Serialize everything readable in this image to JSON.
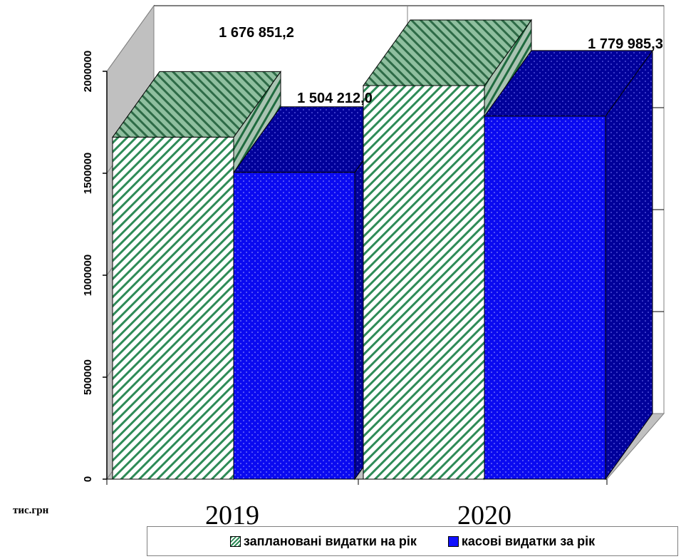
{
  "chart_data": {
    "type": "bar",
    "categories": [
      "2019",
      "2020"
    ],
    "series": [
      {
        "name": "заплановані видатки на рік",
        "values": [
          1676851.2,
          1930000
        ],
        "labels": [
          "1 676 851,2",
          ""
        ]
      },
      {
        "name": "касові видатки за рік",
        "values": [
          1504212.0,
          1779985.3
        ],
        "labels": [
          "1 504 212,0",
          "1 779 985,3"
        ]
      }
    ],
    "y_ticks": [
      "0",
      "500000",
      "1000000",
      "1500000",
      "2000000"
    ],
    "ylim": [
      0,
      2000000
    ],
    "unit": "тис.грн",
    "grid": true,
    "legend_position": "bottom",
    "colors": {
      "planned_stripe": "#2e8b57",
      "planned_bg": "#ffffff",
      "cash": "#0a0af0",
      "cash_dark": "#00009a",
      "floor": "#c0c0c0"
    }
  }
}
